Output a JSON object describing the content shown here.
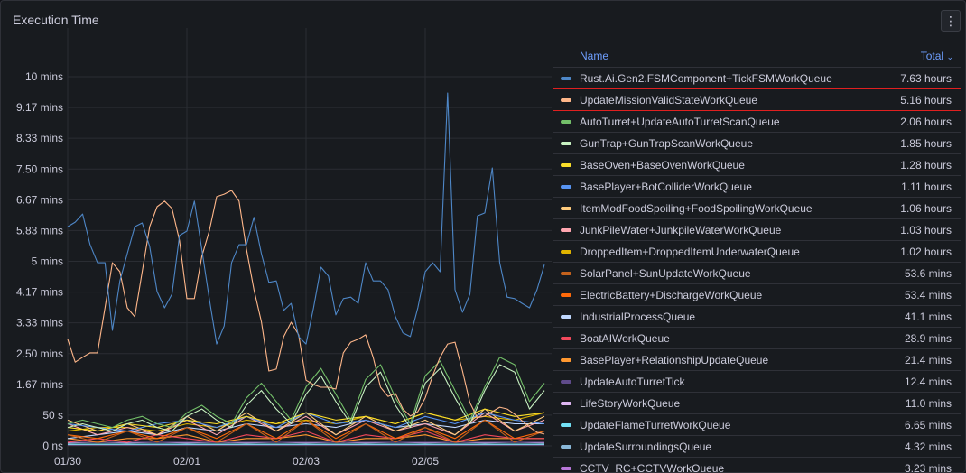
{
  "panel": {
    "title": "Execution Time",
    "menu_icon": "kebab-menu-icon",
    "menu_glyph": "⋮"
  },
  "legend": {
    "name_header": "Name",
    "total_header": "Total",
    "sort_glyph": "⌄",
    "items": [
      {
        "name": "Rust.Ai.Gen2.FSMComponent+TickFSMWorkQueue",
        "total": "7.63 hours",
        "color": "#4e87c7"
      },
      {
        "name": "UpdateMissionValidStateWorkQueue",
        "total": "5.16 hours",
        "color": "#ffb78a"
      },
      {
        "name": "AutoTurret+UpdateAutoTurretScanQueue",
        "total": "2.06 hours",
        "color": "#73bf69"
      },
      {
        "name": "GunTrap+GunTrapScanWorkQueue",
        "total": "1.85 hours",
        "color": "#c8f2c2"
      },
      {
        "name": "BaseOven+BaseOvenWorkQueue",
        "total": "1.28 hours",
        "color": "#fade2a"
      },
      {
        "name": "BasePlayer+BotColliderWorkQueue",
        "total": "1.11 hours",
        "color": "#5794f2"
      },
      {
        "name": "ItemModFoodSpoiling+FoodSpoilingWorkQueue",
        "total": "1.06 hours",
        "color": "#ffcb7d"
      },
      {
        "name": "JunkPileWater+JunkpileWaterWorkQueue",
        "total": "1.03 hours",
        "color": "#ffa6b0"
      },
      {
        "name": "DroppedItem+DroppedItemUnderwaterQueue",
        "total": "1.02 hours",
        "color": "#e0b400"
      },
      {
        "name": "SolarPanel+SunUpdateWorkQueue",
        "total": "53.6 mins",
        "color": "#c4621d"
      },
      {
        "name": "ElectricBattery+DischargeWorkQueue",
        "total": "53.4 mins",
        "color": "#ff6a0a"
      },
      {
        "name": "IndustrialProcessQueue",
        "total": "41.1 mins",
        "color": "#c0d8ff"
      },
      {
        "name": "BoatAIWorkQueue",
        "total": "28.9 mins",
        "color": "#f2495c"
      },
      {
        "name": "BasePlayer+RelationshipUpdateQueue",
        "total": "21.4 mins",
        "color": "#ff9830"
      },
      {
        "name": "UpdateAutoTurretTick",
        "total": "12.4 mins",
        "color": "#5f4b8b"
      },
      {
        "name": "LifeStoryWorkQueue",
        "total": "11.0 mins",
        "color": "#deb6f2"
      },
      {
        "name": "UpdateFlameTurretWorkQueue",
        "total": "6.65 mins",
        "color": "#73e1f5"
      },
      {
        "name": "UpdateSurroundingsQueue",
        "total": "4.32 mins",
        "color": "#8ab8d9"
      },
      {
        "name": "CCTV_RC+CCTVWorkQueue",
        "total": "3.23 mins",
        "color": "#b877d9"
      }
    ]
  },
  "chart_data": {
    "type": "line",
    "title": "Execution Time",
    "ylabel": "minutes",
    "xlabel": "",
    "x_unit": "days since 01/30 00:00",
    "xlim": [
      0,
      8
    ],
    "ylim": [
      0,
      10
    ],
    "grid": true,
    "legend_placement": "right",
    "x_ticks": [
      {
        "label": "01/30",
        "value": 0
      },
      {
        "label": "02/01",
        "value": 2
      },
      {
        "label": "02/03",
        "value": 4
      },
      {
        "label": "02/05",
        "value": 6
      }
    ],
    "y_ticks": [
      {
        "label": "0 ns",
        "value": 0
      },
      {
        "label": "50 s",
        "value": 0.8333
      },
      {
        "label": "1.67 mins",
        "value": 1.6667
      },
      {
        "label": "2.50 mins",
        "value": 2.5
      },
      {
        "label": "3.33 mins",
        "value": 3.3333
      },
      {
        "label": "4.17 mins",
        "value": 4.1667
      },
      {
        "label": "5 mins",
        "value": 5
      },
      {
        "label": "5.83 mins",
        "value": 5.8333
      },
      {
        "label": "6.67 mins",
        "value": 6.6667
      },
      {
        "label": "7.50 mins",
        "value": 7.5
      },
      {
        "label": "8.33 mins",
        "value": 8.3333
      },
      {
        "label": "9.17 mins",
        "value": 9.1667
      },
      {
        "label": "10 mins",
        "value": 10
      }
    ],
    "series": [
      {
        "name": "Rust.Ai.Gen2.FSMComponent+TickFSMWorkQueue",
        "step_days": 0.125,
        "values": [
          5.94,
          6.06,
          6.28,
          5.45,
          4.96,
          4.96,
          3.13,
          4.47,
          5.21,
          5.94,
          6.04,
          5.4,
          4.18,
          3.74,
          4.11,
          5.7,
          5.82,
          6.63,
          5.33,
          3.99,
          2.76,
          3.25,
          4.96,
          5.45,
          5.45,
          6.19,
          5.21,
          4.43,
          4.47,
          3.67,
          3.86,
          2.96,
          2.76,
          3.74,
          4.84,
          4.6,
          3.55,
          3.99,
          4.03,
          3.86,
          4.96,
          4.47,
          4.47,
          4.23,
          3.5,
          3.06,
          2.96,
          3.74,
          4.72,
          4.96,
          4.72,
          9.56,
          4.23,
          3.62,
          4.11,
          6.23,
          6.31,
          7.53,
          4.96,
          4.03,
          3.99,
          3.86,
          3.74,
          4.23,
          4.91
        ]
      },
      {
        "name": "UpdateMissionValidStateWorkQueue",
        "step_days": 0.125,
        "values": [
          2.89,
          2.27,
          2.4,
          2.52,
          2.52,
          3.74,
          4.96,
          4.72,
          3.74,
          3.5,
          4.72,
          5.94,
          6.48,
          6.63,
          6.43,
          5.57,
          3.99,
          3.99,
          5.13,
          5.82,
          6.75,
          6.82,
          6.92,
          6.63,
          5.33,
          4.23,
          3.37,
          2.03,
          2.08,
          2.96,
          3.35,
          3.01,
          1.78,
          1.66,
          1.59,
          1.59,
          1.54,
          2.52,
          2.81,
          2.89,
          3.01,
          2.4,
          1.59,
          1.34,
          1.42,
          1.0,
          0.81,
          0.93,
          1.3,
          1.91,
          2.4,
          2.76,
          2.81,
          2.03,
          1.17,
          0.76,
          0.81,
          0.93,
          1.05,
          1.0,
          0.86,
          0.68,
          0.51,
          0.37,
          0.32
        ]
      },
      {
        "name": "AutoTurret+UpdateAutoTurretScanQueue",
        "step_days": 0.25,
        "values": [
          0.6,
          0.7,
          0.6,
          0.5,
          0.7,
          0.8,
          0.6,
          0.5,
          0.9,
          1.1,
          0.8,
          0.6,
          1.3,
          1.7,
          1.2,
          0.7,
          1.6,
          2.1,
          1.4,
          0.7,
          1.8,
          2.2,
          1.3,
          0.6,
          1.9,
          2.3,
          1.5,
          0.7,
          1.6,
          2.4,
          2.2,
          1.2,
          1.7
        ]
      },
      {
        "name": "GunTrap+GunTrapScanWorkQueue",
        "step_days": 0.25,
        "values": [
          0.5,
          0.6,
          0.5,
          0.4,
          0.6,
          0.7,
          0.5,
          0.4,
          0.8,
          1.0,
          0.7,
          0.5,
          1.1,
          1.5,
          1.0,
          0.6,
          1.4,
          1.9,
          1.2,
          0.6,
          1.6,
          2.0,
          1.1,
          0.5,
          1.7,
          2.1,
          1.3,
          0.6,
          1.5,
          2.2,
          2.0,
          1.0,
          1.5
        ]
      },
      {
        "name": "BaseOven+BaseOvenWorkQueue",
        "step_days": 0.5,
        "values": [
          0.5,
          0.4,
          0.6,
          0.5,
          0.7,
          0.6,
          0.8,
          0.6,
          0.9,
          0.7,
          0.8,
          0.6,
          0.9,
          0.7,
          1.0,
          0.8,
          0.9
        ]
      },
      {
        "name": "BasePlayer+BotColliderWorkQueue",
        "step_days": 0.5,
        "values": [
          0.6,
          0.5,
          0.4,
          0.6,
          0.7,
          0.5,
          0.8,
          0.5,
          0.9,
          0.6,
          0.7,
          0.5,
          0.8,
          0.6,
          0.9,
          0.7,
          0.6
        ]
      },
      {
        "name": "ItemModFoodSpoiling+FoodSpoilingWorkQueue",
        "step_days": 0.5,
        "values": [
          0.7,
          0.4,
          0.6,
          0.3,
          0.8,
          0.4,
          0.9,
          0.4,
          0.9,
          0.3,
          0.8,
          0.4,
          0.7,
          0.3,
          1.0,
          0.4,
          0.8
        ]
      },
      {
        "name": "JunkPileWater+JunkpileWaterWorkQueue",
        "step_days": 0.5,
        "values": [
          0.6,
          0.3,
          0.5,
          0.3,
          0.7,
          0.3,
          0.8,
          0.4,
          0.8,
          0.3,
          0.7,
          0.4,
          0.6,
          0.3,
          0.9,
          0.4,
          0.7
        ]
      },
      {
        "name": "DroppedItem+DroppedItemUnderwaterQueue",
        "step_days": 0.5,
        "values": [
          0.4,
          0.5,
          0.5,
          0.4,
          0.6,
          0.5,
          0.7,
          0.6,
          0.7,
          0.6,
          0.8,
          0.6,
          0.9,
          0.7,
          0.8,
          0.7,
          0.9
        ]
      },
      {
        "name": "SolarPanel+SunUpdateWorkQueue",
        "step_days": 0.5,
        "values": [
          0.3,
          0.1,
          0.4,
          0.1,
          0.5,
          0.1,
          0.6,
          0.1,
          0.7,
          0.1,
          0.6,
          0.1,
          0.5,
          0.1,
          0.7,
          0.1,
          0.4
        ]
      },
      {
        "name": "ElectricBattery+DischargeWorkQueue",
        "step_days": 0.5,
        "values": [
          0.3,
          0.2,
          0.4,
          0.2,
          0.5,
          0.2,
          0.6,
          0.2,
          0.7,
          0.2,
          0.6,
          0.2,
          0.5,
          0.2,
          0.7,
          0.2,
          0.4
        ]
      },
      {
        "name": "IndustrialProcessQueue",
        "step_days": 0.5,
        "values": [
          0.2,
          0.3,
          0.4,
          0.3,
          0.5,
          0.4,
          0.6,
          0.5,
          0.6,
          0.5,
          0.7,
          0.5,
          0.6,
          0.5,
          0.7,
          0.6,
          0.6
        ]
      },
      {
        "name": "BoatAIWorkQueue",
        "step_days": 0.5,
        "values": [
          0.1,
          0.2,
          0.1,
          0.3,
          0.2,
          0.1,
          0.3,
          0.2,
          0.4,
          0.1,
          0.3,
          0.2,
          0.4,
          0.1,
          0.3,
          0.2,
          0.2
        ]
      },
      {
        "name": "BasePlayer+RelationshipUpdateQueue",
        "step_days": 0.5,
        "values": [
          0.2,
          0.1,
          0.2,
          0.2,
          0.3,
          0.1,
          0.2,
          0.2,
          0.3,
          0.1,
          0.2,
          0.2,
          0.3,
          0.1,
          0.2,
          0.2,
          0.2
        ]
      },
      {
        "name": "UpdateAutoTurretTick",
        "step_days": 0.5,
        "values": [
          0.1,
          0.1,
          0.1,
          0.1,
          0.1,
          0.1,
          0.1,
          0.1,
          0.1,
          0.1,
          0.1,
          0.1,
          0.1,
          0.1,
          0.1,
          0.1,
          0.1
        ]
      },
      {
        "name": "LifeStoryWorkQueue",
        "step_days": 0.5,
        "values": [
          0.08,
          0.1,
          0.08,
          0.1,
          0.08,
          0.1,
          0.08,
          0.1,
          0.08,
          0.1,
          0.08,
          0.1,
          0.08,
          0.1,
          0.08,
          0.1,
          0.08
        ]
      },
      {
        "name": "UpdateFlameTurretWorkQueue",
        "step_days": 0.5,
        "values": [
          0.05,
          0.05,
          0.05,
          0.05,
          0.05,
          0.05,
          0.05,
          0.05,
          0.05,
          0.05,
          0.05,
          0.05,
          0.05,
          0.05,
          0.05,
          0.05,
          0.05
        ]
      },
      {
        "name": "UpdateSurroundingsQueue",
        "step_days": 0.5,
        "values": [
          0.04,
          0.04,
          0.04,
          0.04,
          0.04,
          0.04,
          0.04,
          0.04,
          0.04,
          0.04,
          0.04,
          0.04,
          0.04,
          0.04,
          0.04,
          0.04,
          0.04
        ]
      },
      {
        "name": "CCTV_RC+CCTVWorkQueue",
        "step_days": 0.5,
        "values": [
          0.03,
          0.03,
          0.03,
          0.03,
          0.03,
          0.03,
          0.03,
          0.03,
          0.03,
          0.03,
          0.03,
          0.03,
          0.03,
          0.03,
          0.03,
          0.03,
          0.03
        ]
      }
    ]
  }
}
